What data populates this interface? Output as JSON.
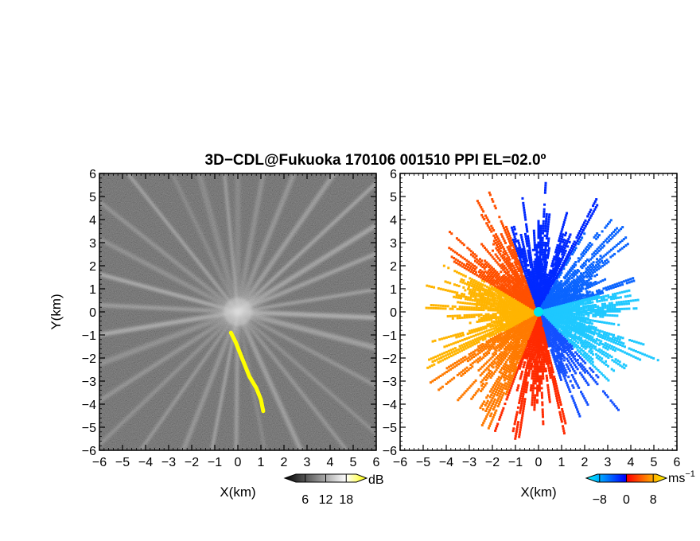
{
  "chart_data": {
    "type": "heatmap",
    "title": "3D−CDL@Fukuoka 170106 001510 PPI EL=02.0º",
    "panels": [
      {
        "id": "reflectivity",
        "xlabel": "X(km)",
        "ylabel": "Y(km)",
        "xlim": [
          -6,
          6
        ],
        "ylim": [
          -6,
          6
        ],
        "xticks": [
          "−6",
          "−5",
          "−4",
          "−3",
          "−2",
          "−1",
          "0",
          "1",
          "2",
          "3",
          "4",
          "5",
          "6"
        ],
        "yticks": [
          "6",
          "5",
          "4",
          "3",
          "2",
          "1",
          "0",
          "−1",
          "−2",
          "−3",
          "−4",
          "−5",
          "−6"
        ],
        "colorbar": {
          "unit": "dB",
          "ticks": [
            "6",
            "12",
            "18"
          ],
          "tick_values": [
            6,
            12,
            18
          ],
          "range": [
            0,
            24
          ],
          "colors": [
            "#000000",
            "#ffffff",
            "#ffff00"
          ]
        },
        "highlight_trace": {
          "color": "#ffff00",
          "points": [
            [
              -0.3,
              -0.9
            ],
            [
              -0.1,
              -1.3
            ],
            [
              0.1,
              -1.8
            ],
            [
              0.3,
              -2.3
            ],
            [
              0.5,
              -2.8
            ],
            [
              0.8,
              -3.3
            ],
            [
              1.0,
              -3.8
            ],
            [
              1.1,
              -4.3
            ]
          ]
        }
      },
      {
        "id": "doppler_velocity",
        "xlabel": "X(km)",
        "ylabel": "",
        "xlim": [
          -6,
          6
        ],
        "ylim": [
          -6,
          6
        ],
        "xticks": [
          "−6",
          "−5",
          "−4",
          "−3",
          "−2",
          "−1",
          "0",
          "1",
          "2",
          "3",
          "4",
          "5",
          "6"
        ],
        "yticks": [
          "6",
          "5",
          "4",
          "3",
          "2",
          "1",
          "0",
          "−1",
          "−2",
          "−3",
          "−4",
          "−5",
          "−6"
        ],
        "colorbar": {
          "unit": "ms",
          "unit_superscript": "−1",
          "ticks": [
            "−8",
            "0",
            "8"
          ],
          "tick_values": [
            -8,
            0,
            8
          ],
          "range": [
            -12,
            12
          ],
          "colors": [
            "#00ffff",
            "#0080ff",
            "#0000ff",
            "#ff0000",
            "#ff8000",
            "#ffff00"
          ]
        }
      }
    ]
  }
}
